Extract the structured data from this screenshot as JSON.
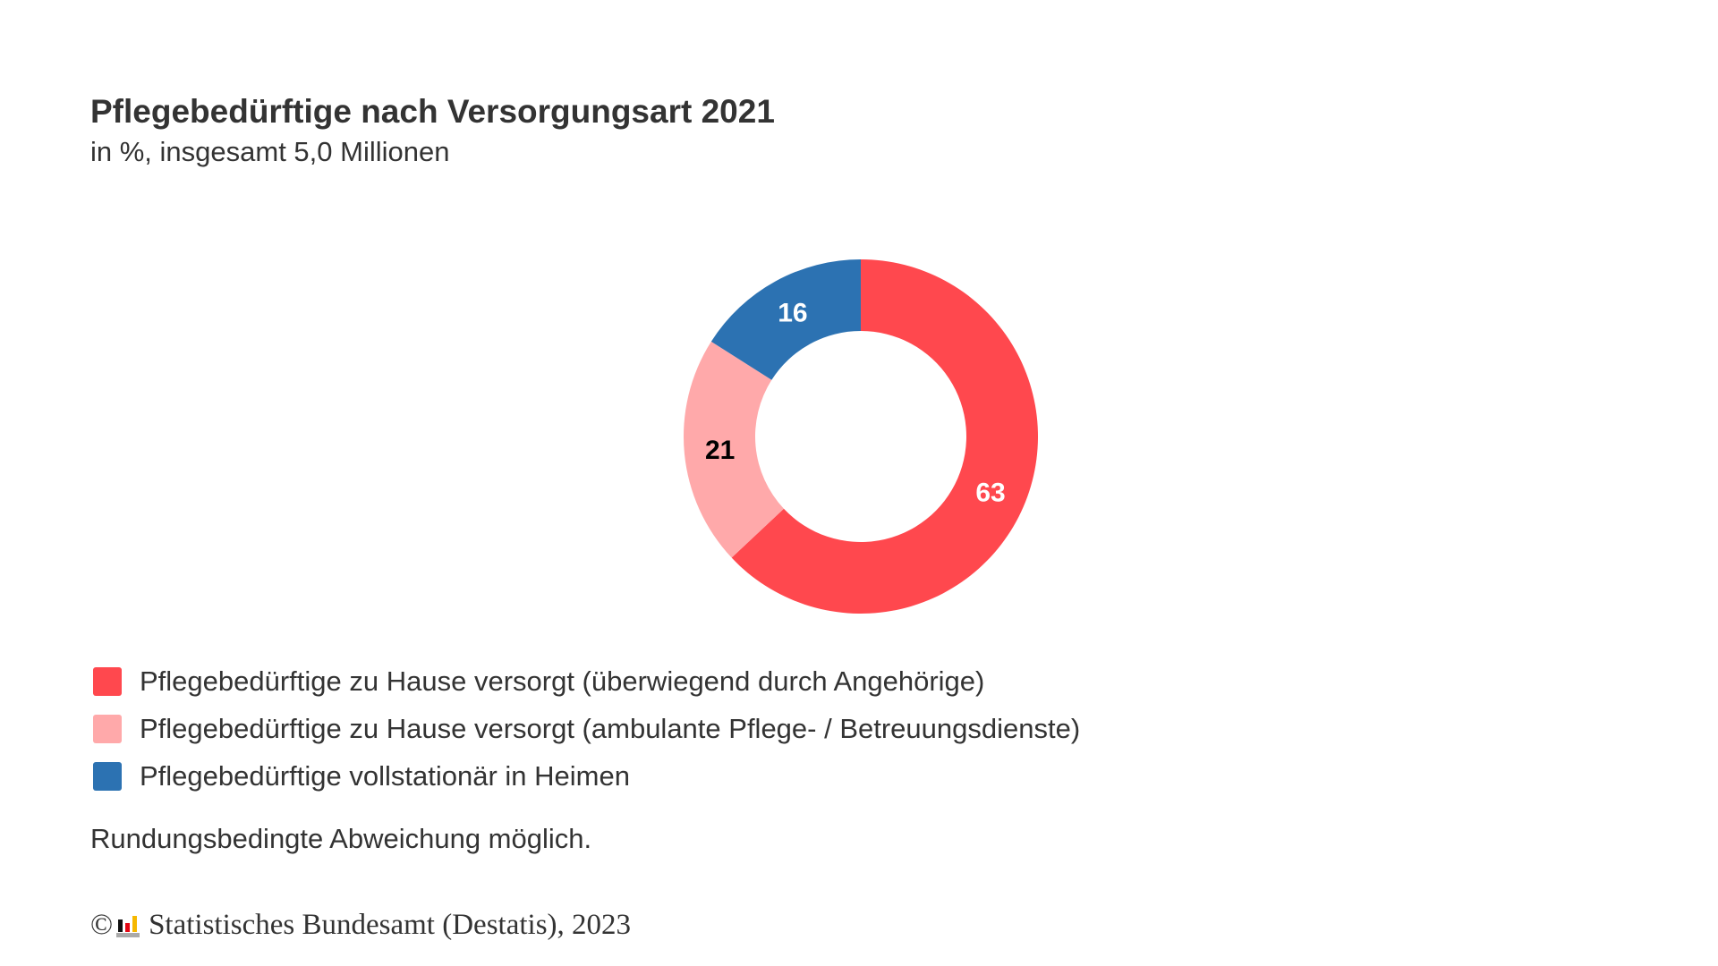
{
  "chart_data": {
    "type": "pie",
    "variant": "donut",
    "title": "Pflegebedürftige nach Versorgungsart 2021",
    "subtitle": "in %, insgesamt 5,0 Millionen",
    "series": [
      {
        "name": "Pflegebedürftige zu Hause versorgt (überwiegend durch Angehörige)",
        "value": 63,
        "label": "63",
        "color": "#ff484e",
        "label_color": "#ffffff"
      },
      {
        "name": "Pflegebedürftige zu Hause versorgt (ambulante Pflege- / Betreuungsdienste)",
        "value": 21,
        "label": "21",
        "color": "#ffa9aa",
        "label_color": "#000000"
      },
      {
        "name": "Pflegebedürftige vollstationär in Heimen",
        "value": 16,
        "label": "16",
        "color": "#2c72b2",
        "label_color": "#ffffff"
      }
    ],
    "legend_position": "bottom-left"
  },
  "note": "Rundungsbedingte Abweichung möglich.",
  "footer": {
    "copyright": "©",
    "source": "Statistisches Bundesamt (Destatis), 2023"
  }
}
